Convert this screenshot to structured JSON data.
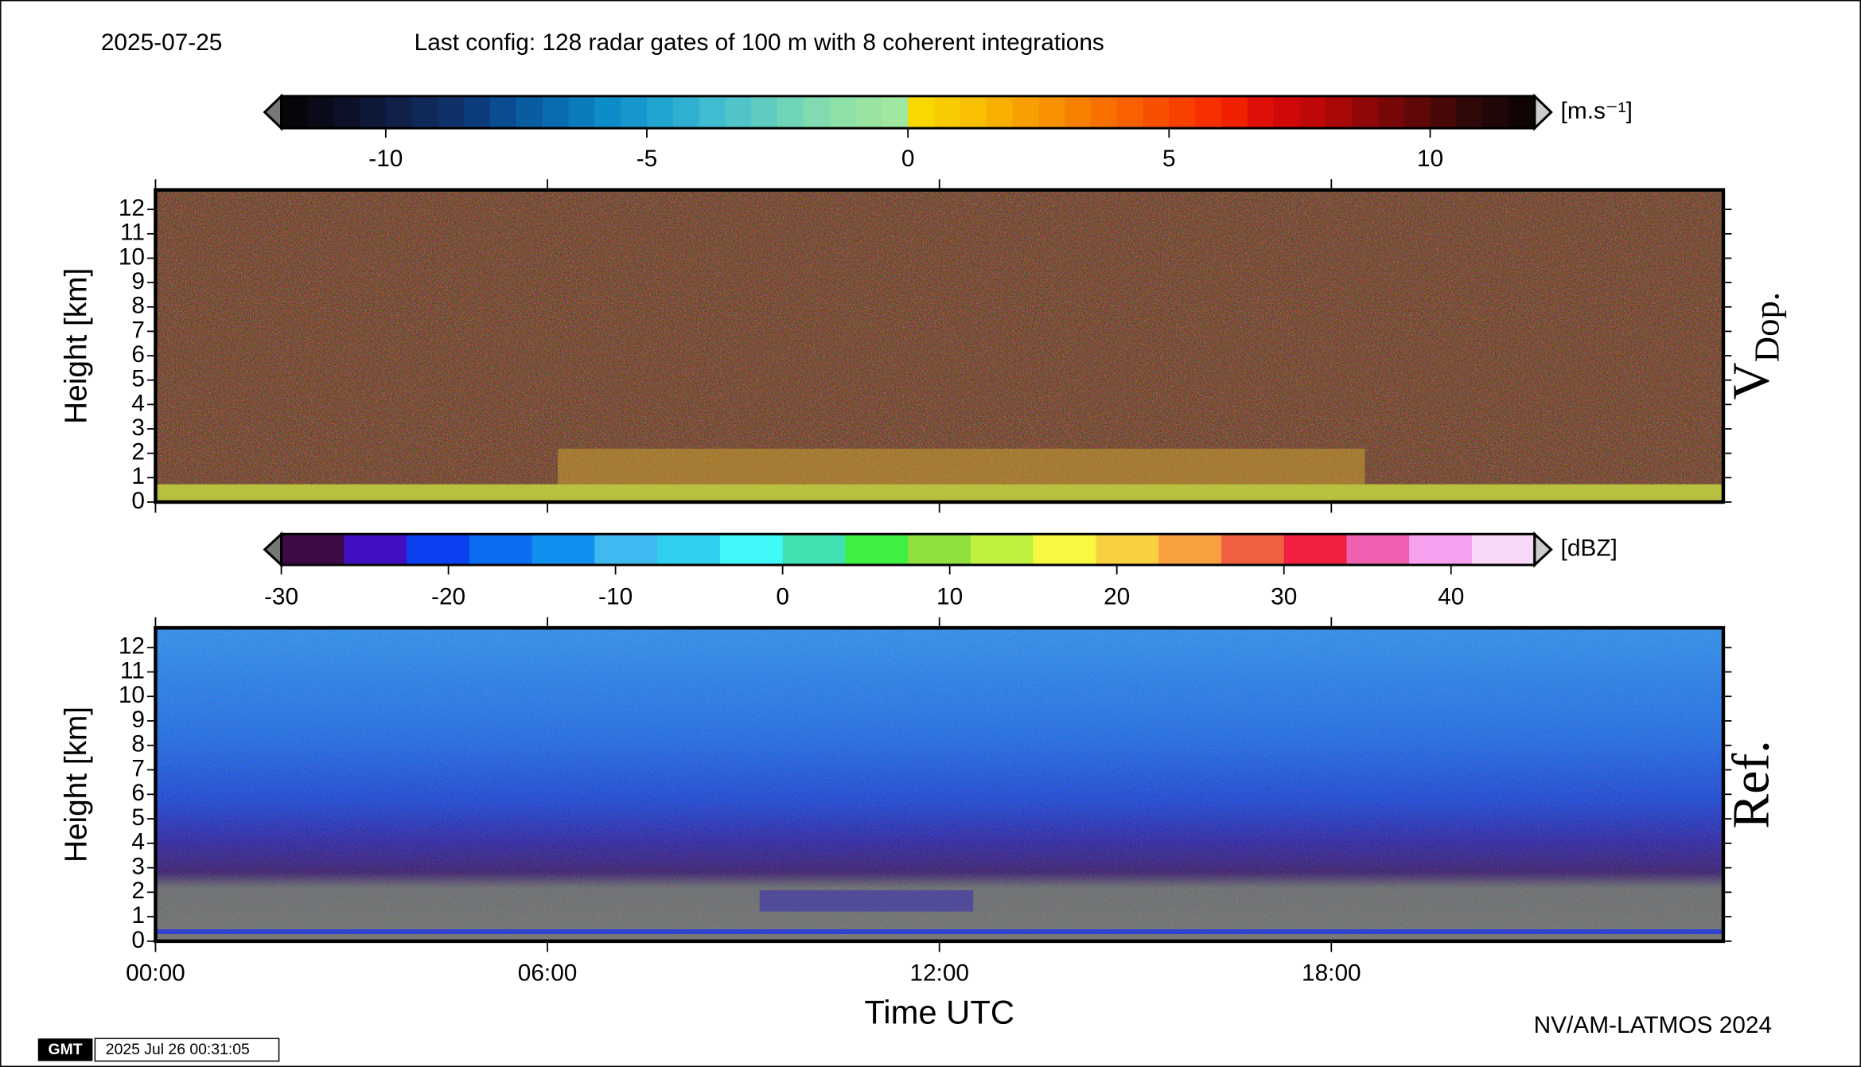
{
  "header": {
    "date": "2025-07-25",
    "config": "Last config: 128 radar gates of 100 m with 8 coherent integrations"
  },
  "footer": {
    "credit": "NV/AM-LATMOS 2024",
    "logo": "GMT",
    "timestamp": "2025 Jul 26 00:31:05"
  },
  "chart_data": [
    {
      "type": "heatmap",
      "ylabel": "Height [km]",
      "panel_label": "V",
      "panel_label_sub": "Dop.",
      "ylim": [
        0,
        12.8
      ],
      "yticks": [
        0,
        1,
        2,
        3,
        4,
        5,
        6,
        7,
        8,
        9,
        10,
        11,
        12
      ],
      "colorbar": {
        "label": "[m.s⁻¹]",
        "lim": [
          -12,
          12
        ],
        "ticks": [
          -10,
          -5,
          0,
          5,
          10
        ],
        "colors": [
          "#05050a",
          "#0a0a18",
          "#0c1028",
          "#0e1838",
          "#102048",
          "#102858",
          "#103068",
          "#0c3c7c",
          "#0a4c90",
          "#0a5ca0",
          "#0a6cb0",
          "#0a7cbe",
          "#0c8cc8",
          "#1698cc",
          "#20a4d0",
          "#30b0d0",
          "#40bcd0",
          "#50c4c8",
          "#60ccc0",
          "#70d4b8",
          "#80dcb0",
          "#8ce0a8",
          "#98e4a0",
          "#a0e8a0",
          "#f8d800",
          "#f8cc00",
          "#f8c000",
          "#f8b000",
          "#f8a000",
          "#f89000",
          "#f88000",
          "#f87000",
          "#f86000",
          "#f85000",
          "#f84000",
          "#f83000",
          "#f02000",
          "#e01008",
          "#d00808",
          "#c00808",
          "#a80808",
          "#900808",
          "#780808",
          "#600808",
          "#480808",
          "#300808",
          "#200808",
          "#100404"
        ]
      }
    },
    {
      "type": "heatmap",
      "ylabel": "Height [km]",
      "xlabel": "Time UTC",
      "panel_label": "Ref.",
      "xlim": [
        0,
        24
      ],
      "xticks": [
        {
          "value": 0,
          "label": "00:00"
        },
        {
          "value": 6,
          "label": "06:00"
        },
        {
          "value": 12,
          "label": "12:00"
        },
        {
          "value": 18,
          "label": "18:00"
        }
      ],
      "ylim": [
        0,
        12.8
      ],
      "yticks": [
        0,
        1,
        2,
        3,
        4,
        5,
        6,
        7,
        8,
        9,
        10,
        11,
        12
      ],
      "colorbar": {
        "label": "[dBZ]",
        "lim": [
          -30,
          45
        ],
        "ticks": [
          -30,
          -20,
          -10,
          0,
          10,
          20,
          30,
          40
        ],
        "colors": [
          "#3d0a45",
          "#4010c0",
          "#0a40f0",
          "#0a6cf0",
          "#1090f0",
          "#40b8f0",
          "#30d0f0",
          "#40f8f8",
          "#40e0b0",
          "#40f040",
          "#90e040",
          "#c0f040",
          "#f8f840",
          "#f8d040",
          "#f8a040",
          "#f06040",
          "#f02040",
          "#f060b0",
          "#f8a0f0",
          "#f8d8f8"
        ]
      }
    }
  ]
}
